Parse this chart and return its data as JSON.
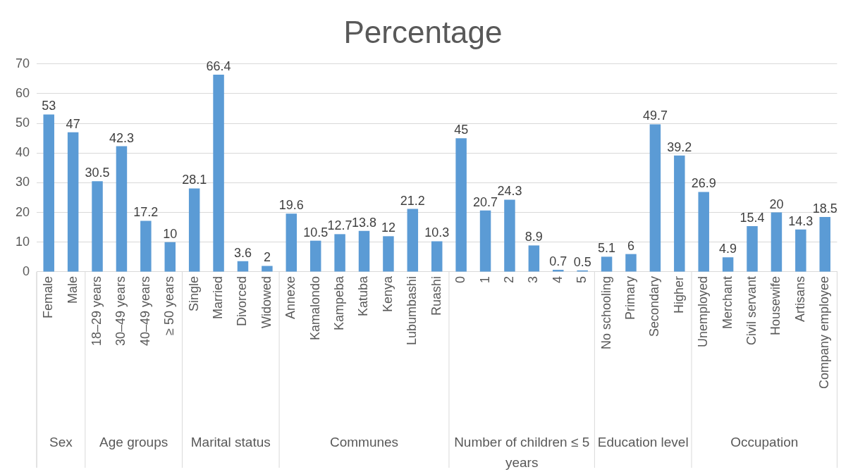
{
  "chart_data": {
    "type": "bar",
    "title": "Percentage",
    "categories": [
      "Female",
      "Male",
      "18–29 years",
      "30–49 years",
      "40–49 years",
      "≥ 50 years",
      "Single",
      "Married",
      "Divorced",
      "Widowed",
      "Annexe",
      "Kamalondo",
      "Kampeba",
      "Katuba",
      "Kenya",
      "Lubumbashi",
      "Ruashi",
      "0",
      "1",
      "2",
      "3",
      "4",
      "5",
      "No schooling",
      "Primary",
      "Secondary",
      "Higher",
      "Unemployed",
      "Merchant",
      "Civil servant",
      "Housewife",
      "Artisans",
      "Company employee"
    ],
    "values": [
      53,
      47,
      30.5,
      42.3,
      17.2,
      10,
      28.1,
      66.4,
      3.6,
      2,
      19.6,
      10.5,
      12.7,
      13.8,
      12,
      21.2,
      10.3,
      45,
      20.7,
      24.3,
      8.9,
      0.7,
      0.5,
      5.1,
      6,
      49.7,
      39.2,
      26.9,
      4.9,
      15.4,
      20,
      14.3,
      18.5
    ],
    "color": "#5b9bd5",
    "ylim": [
      0,
      70
    ],
    "yticks": [
      0,
      10,
      20,
      30,
      40,
      50,
      60,
      70
    ],
    "grid": "y",
    "data_labels": true,
    "legend": false,
    "annotations": [
      "Sex",
      "Age groups",
      "Marital status",
      "Communes",
      "Number of children ≤ 5 years",
      "Education level",
      "Occupation"
    ]
  }
}
